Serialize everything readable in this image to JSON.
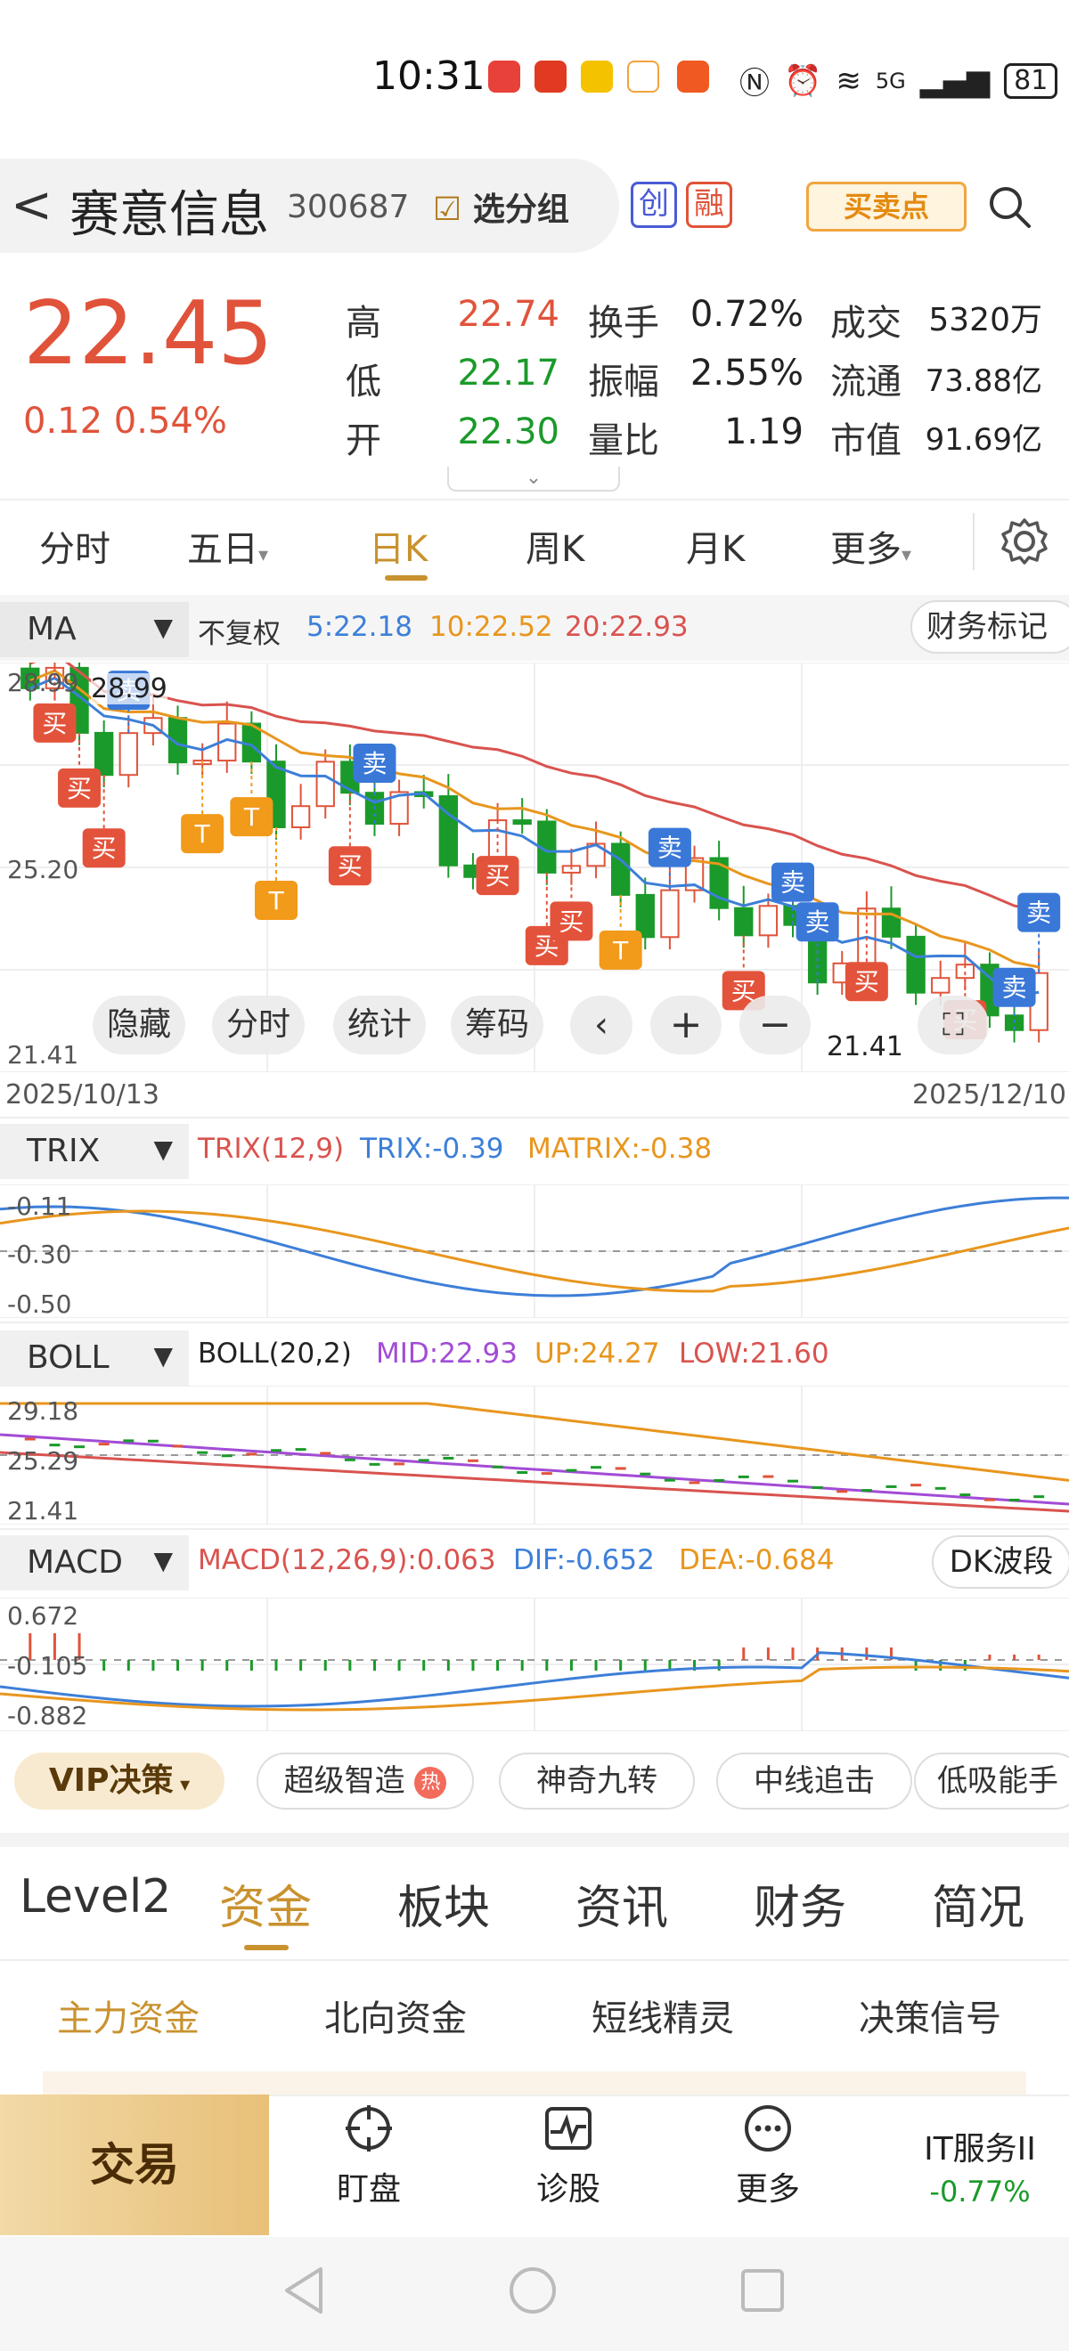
{
  "status": {
    "time": "10:31",
    "battery": "81",
    "network": "5G"
  },
  "header": {
    "back": "<",
    "name": "赛意信息",
    "code": "300687",
    "group_btn": "选分组",
    "tag1": "创",
    "tag2": "融",
    "bsp_btn": "买卖点"
  },
  "quote": {
    "price": "22.45",
    "change": "0.12 0.54%",
    "rows": [
      {
        "l1": "高",
        "v1": "22.74",
        "l2": "换手",
        "v2": "0.72%",
        "l3": "成交",
        "v3": "5320万"
      },
      {
        "l1": "低",
        "v1": "22.17",
        "l2": "振幅",
        "v2": "2.55%",
        "l3": "流通",
        "v3": "73.88亿"
      },
      {
        "l1": "开",
        "v1": "22.30",
        "l2": "量比",
        "v2": "1.19",
        "l3": "市值",
        "v3": "91.69亿"
      }
    ]
  },
  "tabs": [
    "分时",
    "五日",
    "日K",
    "周K",
    "月K",
    "更多"
  ],
  "colors": {
    "up": "#e0533a",
    "down": "#1a9a2a",
    "ma5": "#3d7fd8",
    "ma10": "#e8961e",
    "ma20": "#d9534f",
    "accent": "#c9922e",
    "purple": "#a24cd6"
  },
  "kline": {
    "indicator": "MA",
    "adjust": "不复权",
    "ma5": "5:22.18",
    "ma10": "10:22.52",
    "ma20": "20:22.93",
    "finance_btn": "财务标记",
    "y_top": "28.99",
    "y_mid": "25.20",
    "y_bottom": "21.41",
    "max_label": "28.99",
    "min_label": "21.41",
    "date_start": "2025/10/13",
    "date_end": "2025/12/10",
    "buy_label": "买",
    "sell_label": "卖",
    "t_label": "T",
    "overlay": [
      "隐藏",
      "分时",
      "统计",
      "筹码"
    ]
  },
  "trix": {
    "name": "TRIX",
    "params": "TRIX(12,9)",
    "trix": "TRIX:-0.39",
    "matrix": "MATRIX:-0.38",
    "y": [
      "-0.11",
      "-0.30",
      "-0.50"
    ]
  },
  "boll": {
    "name": "BOLL",
    "params": "BOLL(20,2)",
    "mid": "MID:22.93",
    "up": "UP:24.27",
    "low": "LOW:21.60",
    "y": [
      "29.18",
      "25.29",
      "21.41"
    ]
  },
  "macd": {
    "name": "MACD",
    "params": "MACD(12,26,9):0.063",
    "dif": "DIF:-0.652",
    "dea": "DEA:-0.684",
    "btn": "DK波段",
    "y": [
      "0.672",
      "-0.105",
      "-0.882"
    ]
  },
  "vip": {
    "label": "VIP决策",
    "chips": [
      "超级智造",
      "神奇九转",
      "中线追击",
      "低吸能手"
    ],
    "hot": "热"
  },
  "bottom_tabs": [
    "Level2",
    "资金",
    "板块",
    "资讯",
    "财务",
    "简况"
  ],
  "sub_tabs": [
    "主力资金",
    "北向资金",
    "短线精灵",
    "决策信号"
  ],
  "nav": {
    "trade": "交易",
    "items": [
      "盯盘",
      "诊股",
      "更多"
    ],
    "sector": "IT服务II",
    "sector_chg": "-0.77%"
  }
}
